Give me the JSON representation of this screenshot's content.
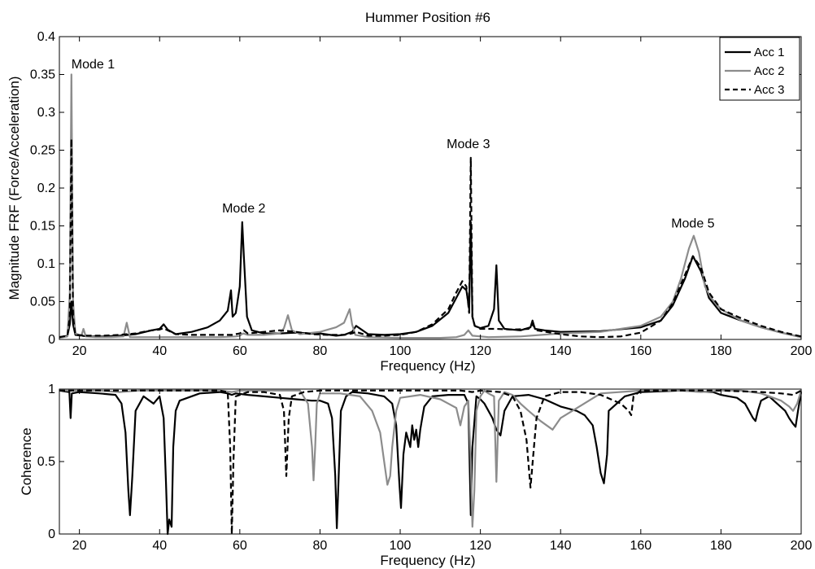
{
  "chart_data": [
    {
      "type": "line",
      "title": "Hummer Position #6",
      "xlabel": "Frequency (Hz)",
      "ylabel": "Magnitude FRF (Force/Acceleration)",
      "xlim": [
        15,
        200
      ],
      "ylim": [
        0,
        0.4
      ],
      "xticks": [
        "20",
        "40",
        "60",
        "80",
        "100",
        "120",
        "140",
        "160",
        "180",
        "200"
      ],
      "yticks": [
        "0",
        "0.05",
        "0.1",
        "0.15",
        "0.2",
        "0.25",
        "0.3",
        "0.35",
        "0.4"
      ],
      "grid": false,
      "legend_position": "top-right",
      "annotations": [
        {
          "text": "Mode 1",
          "x": 18,
          "y": 0.36
        },
        {
          "text": "Mode 2",
          "x": 61,
          "y": 0.17
        },
        {
          "text": "Mode 3",
          "x": 117,
          "y": 0.255
        },
        {
          "text": "Mode 5",
          "x": 173,
          "y": 0.15
        }
      ],
      "series": [
        {
          "name": "Acc 1",
          "color": "#000000",
          "style": "solid",
          "x": [
            15,
            17,
            17.6,
            18,
            18.4,
            19,
            22,
            26,
            30,
            34,
            38,
            40,
            41,
            42,
            44,
            48,
            52,
            55,
            57,
            57.8,
            58.2,
            59,
            60,
            60.6,
            61,
            61.8,
            63,
            66,
            70,
            74,
            78,
            80,
            84,
            86,
            88,
            89,
            92,
            96,
            100,
            104,
            108,
            112,
            114,
            115.5,
            116.5,
            117.2,
            117.6,
            118,
            118.6,
            120,
            122,
            123.4,
            124,
            124.6,
            126,
            130,
            132.5,
            133,
            133.6,
            136,
            140,
            150,
            160,
            165,
            168,
            171,
            173,
            175,
            177,
            180,
            185,
            190,
            195,
            200
          ],
          "y": [
            0.003,
            0.005,
            0.02,
            0.05,
            0.02,
            0.006,
            0.004,
            0.004,
            0.005,
            0.007,
            0.012,
            0.014,
            0.02,
            0.013,
            0.007,
            0.01,
            0.016,
            0.025,
            0.038,
            0.065,
            0.03,
            0.035,
            0.07,
            0.155,
            0.11,
            0.03,
            0.012,
            0.008,
            0.008,
            0.009,
            0.008,
            0.008,
            0.005,
            0.006,
            0.01,
            0.018,
            0.007,
            0.006,
            0.007,
            0.01,
            0.018,
            0.035,
            0.055,
            0.07,
            0.065,
            0.04,
            0.155,
            0.03,
            0.018,
            0.015,
            0.018,
            0.04,
            0.098,
            0.025,
            0.014,
            0.012,
            0.016,
            0.025,
            0.014,
            0.012,
            0.01,
            0.011,
            0.016,
            0.025,
            0.045,
            0.08,
            0.11,
            0.09,
            0.055,
            0.035,
            0.025,
            0.016,
            0.009,
            0.003
          ]
        },
        {
          "name": "Acc 2",
          "color": "#8c8c8c",
          "style": "solid",
          "x": [
            15,
            17,
            17.6,
            18,
            18.4,
            19,
            20.5,
            21,
            21.6,
            24,
            28,
            31,
            31.8,
            32.6,
            35,
            40,
            45,
            50,
            55,
            59,
            60,
            60.8,
            62,
            66,
            70,
            71,
            72,
            73,
            75,
            80,
            84,
            86,
            87.4,
            88,
            88.8,
            92,
            100,
            110,
            114,
            116,
            117,
            118,
            122,
            130,
            140,
            150,
            160,
            165,
            168,
            170,
            172,
            173.2,
            174.5,
            176,
            177.5,
            180,
            185,
            190,
            195,
            200
          ],
          "y": [
            0.002,
            0.004,
            0.06,
            0.35,
            0.05,
            0.008,
            0.005,
            0.014,
            0.004,
            0.003,
            0.003,
            0.004,
            0.022,
            0.003,
            0.003,
            0.003,
            0.003,
            0.003,
            0.003,
            0.004,
            0.005,
            0.008,
            0.006,
            0.006,
            0.008,
            0.015,
            0.032,
            0.012,
            0.007,
            0.01,
            0.016,
            0.022,
            0.04,
            0.02,
            0.006,
            0.003,
            0.002,
            0.002,
            0.003,
            0.006,
            0.012,
            0.005,
            0.003,
            0.004,
            0.008,
            0.01,
            0.018,
            0.03,
            0.05,
            0.08,
            0.12,
            0.137,
            0.115,
            0.07,
            0.055,
            0.04,
            0.025,
            0.016,
            0.009,
            0.003
          ]
        },
        {
          "name": "Acc 3",
          "color": "#000000",
          "style": "dashed",
          "x": [
            15,
            17,
            17.6,
            18,
            18.4,
            19,
            22,
            26,
            30,
            34,
            38,
            40,
            41,
            42,
            44,
            48,
            52,
            56,
            58,
            60,
            60.6,
            61,
            62,
            66,
            70,
            74,
            78,
            82,
            86,
            88,
            89,
            92,
            96,
            100,
            104,
            108,
            112,
            114,
            115.5,
            116.5,
            117.2,
            117.6,
            118,
            118.6,
            120,
            124,
            128,
            132,
            133,
            134,
            140,
            145,
            150,
            155,
            160,
            165,
            168,
            171,
            173,
            175,
            177,
            180,
            185,
            190,
            195,
            200
          ],
          "y": [
            0.003,
            0.005,
            0.03,
            0.265,
            0.03,
            0.006,
            0.005,
            0.005,
            0.006,
            0.008,
            0.012,
            0.013,
            0.015,
            0.012,
            0.007,
            0.006,
            0.006,
            0.006,
            0.006,
            0.008,
            0.01,
            0.012,
            0.008,
            0.01,
            0.012,
            0.01,
            0.007,
            0.006,
            0.006,
            0.008,
            0.01,
            0.005,
            0.005,
            0.006,
            0.01,
            0.02,
            0.04,
            0.062,
            0.077,
            0.07,
            0.035,
            0.24,
            0.03,
            0.018,
            0.014,
            0.014,
            0.013,
            0.014,
            0.02,
            0.012,
            0.007,
            0.004,
            0.003,
            0.004,
            0.009,
            0.025,
            0.048,
            0.085,
            0.11,
            0.095,
            0.062,
            0.04,
            0.028,
            0.018,
            0.01,
            0.004
          ]
        }
      ]
    },
    {
      "type": "line",
      "title": "",
      "xlabel": "Frequency (Hz)",
      "ylabel": "Coherence",
      "xlim": [
        15,
        200
      ],
      "ylim": [
        0,
        1
      ],
      "xticks": [
        "20",
        "40",
        "60",
        "80",
        "100",
        "120",
        "140",
        "160",
        "180",
        "200"
      ],
      "yticks": [
        "0",
        "0.5",
        "1"
      ],
      "grid": false,
      "series": [
        {
          "color": "#000000",
          "style": "solid",
          "x": [
            15,
            17.5,
            17.8,
            18.1,
            20,
            25,
            29,
            30.5,
            31.5,
            32.2,
            32.6,
            33.2,
            34,
            36,
            38.5,
            40,
            41,
            41.6,
            42,
            42.4,
            43,
            43.4,
            44,
            45,
            50,
            55,
            57,
            58,
            59,
            62,
            66,
            70,
            74,
            78,
            80,
            82,
            83,
            83.8,
            84.2,
            84.6,
            85.2,
            86.5,
            88,
            92,
            96,
            98,
            99,
            99.8,
            100.2,
            100.8,
            101.5,
            102.5,
            103,
            103.5,
            104,
            104.5,
            105,
            105.5,
            106,
            108,
            112,
            116,
            117,
            117.6,
            118,
            119,
            120,
            121,
            122,
            123,
            124,
            125,
            126,
            128,
            132,
            136,
            140,
            144,
            146,
            148,
            149,
            150,
            150.8,
            151.6,
            152,
            156,
            160,
            170,
            178,
            180,
            184,
            186,
            187,
            188,
            188.6,
            189.2,
            190,
            192,
            194,
            196,
            197,
            198,
            198.6,
            199.2,
            200
          ],
          "y": [
            0.99,
            0.98,
            0.8,
            0.97,
            0.98,
            0.97,
            0.96,
            0.9,
            0.7,
            0.3,
            0.13,
            0.4,
            0.85,
            0.95,
            0.9,
            0.95,
            0.8,
            0.35,
            0.0,
            0.1,
            0.05,
            0.6,
            0.85,
            0.92,
            0.97,
            0.98,
            0.97,
            0.96,
            0.97,
            0.96,
            0.95,
            0.94,
            0.93,
            0.92,
            0.92,
            0.9,
            0.8,
            0.4,
            0.04,
            0.35,
            0.85,
            0.95,
            0.98,
            0.97,
            0.95,
            0.9,
            0.75,
            0.35,
            0.18,
            0.55,
            0.7,
            0.6,
            0.75,
            0.65,
            0.72,
            0.6,
            0.72,
            0.8,
            0.88,
            0.95,
            0.96,
            0.96,
            0.9,
            0.13,
            0.6,
            0.95,
            0.93,
            0.9,
            0.85,
            0.8,
            0.72,
            0.68,
            0.85,
            0.95,
            0.96,
            0.93,
            0.88,
            0.85,
            0.82,
            0.75,
            0.6,
            0.42,
            0.35,
            0.55,
            0.85,
            0.95,
            0.98,
            0.99,
            0.98,
            0.96,
            0.94,
            0.9,
            0.85,
            0.8,
            0.78,
            0.85,
            0.92,
            0.95,
            0.9,
            0.85,
            0.8,
            0.76,
            0.74,
            0.85,
            0.98
          ]
        },
        {
          "color": "#8c8c8c",
          "style": "solid",
          "x": [
            15,
            20,
            25,
            30,
            35,
            40,
            45,
            50,
            55,
            58,
            60,
            65,
            70,
            75,
            77,
            78,
            78.4,
            78.8,
            79.2,
            80,
            85,
            90,
            93,
            95,
            96,
            96.8,
            97.5,
            98,
            99,
            100,
            105,
            110,
            112,
            114,
            115,
            116,
            117,
            117.6,
            118,
            118.5,
            119,
            120,
            121,
            122,
            123.4,
            124,
            124.6,
            126,
            128,
            130,
            132,
            135,
            138,
            140,
            150,
            160,
            170,
            175,
            180,
            185,
            190,
            195,
            197,
            198,
            199,
            200
          ],
          "y": [
            0.99,
            0.99,
            0.99,
            0.98,
            0.99,
            0.99,
            0.99,
            0.99,
            0.99,
            0.98,
            0.99,
            0.99,
            0.99,
            0.99,
            0.9,
            0.6,
            0.37,
            0.6,
            0.9,
            0.97,
            0.97,
            0.95,
            0.85,
            0.7,
            0.5,
            0.34,
            0.4,
            0.6,
            0.85,
            0.94,
            0.96,
            0.93,
            0.9,
            0.87,
            0.75,
            0.88,
            0.92,
            0.5,
            0.05,
            0.3,
            0.85,
            0.95,
            0.99,
            0.97,
            0.95,
            0.36,
            0.92,
            0.98,
            0.96,
            0.9,
            0.85,
            0.78,
            0.72,
            0.8,
            0.97,
            0.99,
            0.99,
            0.98,
            0.99,
            0.99,
            0.97,
            0.92,
            0.88,
            0.85,
            0.9,
            0.99
          ]
        },
        {
          "color": "#000000",
          "style": "dashed",
          "x": [
            15,
            20,
            25,
            30,
            35,
            40,
            45,
            50,
            55,
            57,
            57.6,
            58,
            58.4,
            59,
            62,
            66,
            70,
            71,
            71.6,
            72.2,
            73,
            76,
            80,
            85,
            90,
            95,
            100,
            105,
            110,
            115,
            118,
            120,
            125,
            128,
            130,
            131.5,
            132.5,
            133.2,
            134,
            136,
            140,
            145,
            150,
            155,
            157,
            157.6,
            158.2,
            160,
            170,
            180,
            190,
            195,
            198,
            200
          ],
          "y": [
            0.99,
            0.99,
            0.99,
            0.99,
            0.99,
            0.99,
            0.99,
            0.99,
            0.99,
            0.98,
            0.6,
            0.0,
            0.5,
            0.95,
            0.98,
            0.98,
            0.96,
            0.85,
            0.4,
            0.8,
            0.95,
            0.98,
            0.99,
            0.99,
            0.99,
            0.99,
            0.99,
            0.99,
            0.99,
            0.99,
            0.98,
            0.99,
            0.98,
            0.95,
            0.85,
            0.65,
            0.32,
            0.55,
            0.8,
            0.95,
            0.98,
            0.98,
            0.96,
            0.9,
            0.85,
            0.82,
            0.95,
            0.99,
            0.99,
            0.99,
            0.98,
            0.97,
            0.96,
            0.99
          ]
        }
      ]
    }
  ]
}
